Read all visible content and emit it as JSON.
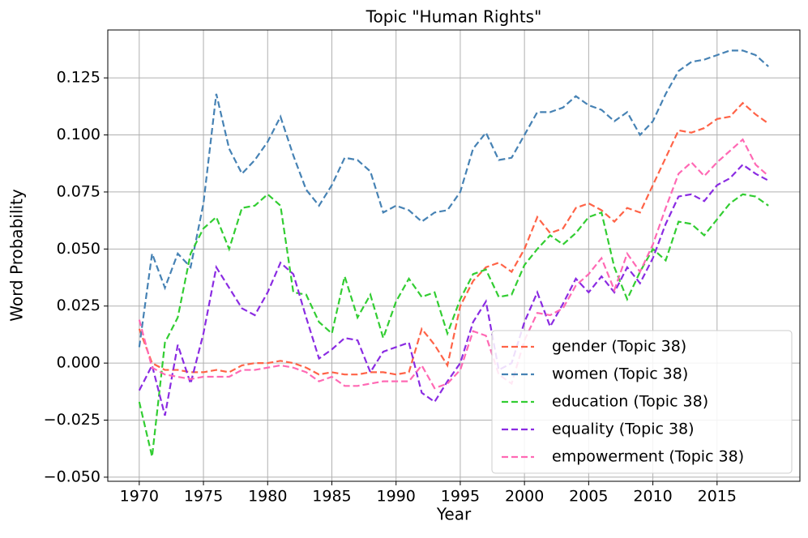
{
  "chart_data": {
    "type": "line",
    "title": "Topic \"Human Rights\"",
    "x_label": "Year",
    "y_label": "Word Probability",
    "x": [
      1970,
      1971,
      1972,
      1973,
      1974,
      1975,
      1976,
      1977,
      1978,
      1979,
      1980,
      1981,
      1982,
      1983,
      1984,
      1985,
      1986,
      1987,
      1988,
      1989,
      1990,
      1991,
      1992,
      1993,
      1994,
      1995,
      1996,
      1997,
      1998,
      1999,
      2000,
      2001,
      2002,
      2003,
      2004,
      2005,
      2006,
      2007,
      2008,
      2009,
      2010,
      2011,
      2012,
      2013,
      2014,
      2015,
      2016,
      2017,
      2018,
      2019
    ],
    "series": [
      {
        "name": "gender (Topic 38)",
        "color": "#ff6347",
        "values": [
          0.015,
          0.0,
          -0.003,
          -0.003,
          -0.004,
          -0.004,
          -0.003,
          -0.004,
          -0.001,
          0.0,
          0.0,
          0.001,
          0.0,
          -0.002,
          -0.005,
          -0.004,
          -0.005,
          -0.005,
          -0.004,
          -0.004,
          -0.005,
          -0.004,
          0.015,
          0.008,
          -0.001,
          0.025,
          0.036,
          0.042,
          0.044,
          0.04,
          0.05,
          0.064,
          0.057,
          0.059,
          0.068,
          0.07,
          0.067,
          0.062,
          0.068,
          0.066,
          0.078,
          0.09,
          0.102,
          0.101,
          0.103,
          0.107,
          0.108,
          0.114,
          0.109,
          0.105
        ]
      },
      {
        "name": "women (Topic 38)",
        "color": "#4682b4",
        "values": [
          0.007,
          0.048,
          0.033,
          0.048,
          0.042,
          0.07,
          0.118,
          0.094,
          0.083,
          0.089,
          0.097,
          0.108,
          0.091,
          0.076,
          0.069,
          0.078,
          0.09,
          0.089,
          0.084,
          0.066,
          0.069,
          0.067,
          0.062,
          0.066,
          0.067,
          0.075,
          0.094,
          0.101,
          0.089,
          0.09,
          0.1,
          0.11,
          0.11,
          0.112,
          0.117,
          0.113,
          0.111,
          0.106,
          0.11,
          0.1,
          0.106,
          0.118,
          0.128,
          0.132,
          0.133,
          0.135,
          0.137,
          0.137,
          0.135,
          0.13
        ]
      },
      {
        "name": "education (Topic 38)",
        "color": "#32cd32",
        "values": [
          -0.017,
          -0.041,
          0.009,
          0.02,
          0.048,
          0.059,
          0.064,
          0.05,
          0.068,
          0.069,
          0.074,
          0.069,
          0.031,
          0.03,
          0.018,
          0.013,
          0.038,
          0.02,
          0.03,
          0.011,
          0.027,
          0.037,
          0.029,
          0.031,
          0.013,
          0.028,
          0.039,
          0.041,
          0.029,
          0.03,
          0.043,
          0.05,
          0.056,
          0.052,
          0.057,
          0.064,
          0.066,
          0.042,
          0.028,
          0.04,
          0.05,
          0.045,
          0.062,
          0.061,
          0.056,
          0.063,
          0.07,
          0.074,
          0.073,
          0.069
        ]
      },
      {
        "name": "equality (Topic 38)",
        "color": "#8a2be2",
        "values": [
          -0.012,
          -0.001,
          -0.023,
          0.008,
          -0.009,
          0.013,
          0.042,
          0.033,
          0.024,
          0.021,
          0.031,
          0.044,
          0.039,
          0.02,
          0.002,
          0.006,
          0.011,
          0.01,
          -0.004,
          0.005,
          0.007,
          0.009,
          -0.013,
          -0.017,
          -0.008,
          0.0,
          0.018,
          0.027,
          -0.003,
          0.0,
          0.018,
          0.031,
          0.016,
          0.026,
          0.037,
          0.031,
          0.038,
          0.031,
          0.042,
          0.035,
          0.046,
          0.061,
          0.073,
          0.074,
          0.071,
          0.078,
          0.081,
          0.087,
          0.083,
          0.08
        ]
      },
      {
        "name": "empowerment (Topic 38)",
        "color": "#ff69b4",
        "values": [
          0.019,
          -0.002,
          -0.005,
          -0.006,
          -0.007,
          -0.006,
          -0.006,
          -0.006,
          -0.003,
          -0.003,
          -0.002,
          -0.001,
          -0.002,
          -0.004,
          -0.008,
          -0.006,
          -0.01,
          -0.01,
          -0.009,
          -0.008,
          -0.008,
          -0.008,
          -0.001,
          -0.011,
          -0.009,
          -0.003,
          0.014,
          0.012,
          -0.005,
          -0.009,
          0.01,
          0.022,
          0.021,
          0.024,
          0.034,
          0.039,
          0.046,
          0.032,
          0.048,
          0.04,
          0.052,
          0.068,
          0.083,
          0.088,
          0.082,
          0.088,
          0.093,
          0.098,
          0.087,
          0.082
        ]
      }
    ],
    "xlim": [
      1967.55,
      2021.45
    ],
    "ylim": [
      -0.0518,
      0.146
    ],
    "xticks": [
      1970,
      1975,
      1980,
      1985,
      1990,
      1995,
      2000,
      2005,
      2010,
      2015
    ],
    "yticks": [
      {
        "value": -0.05,
        "label": "−0.050"
      },
      {
        "value": -0.025,
        "label": "−0.025"
      },
      {
        "value": 0,
        "label": "0.000"
      },
      {
        "value": 0.025,
        "label": "0.025"
      },
      {
        "value": 0.05,
        "label": "0.050"
      },
      {
        "value": 0.075,
        "label": "0.075"
      },
      {
        "value": 0.1,
        "label": "0.100"
      },
      {
        "value": 0.125,
        "label": "0.125"
      }
    ],
    "grid": true,
    "legend": "lower right"
  }
}
